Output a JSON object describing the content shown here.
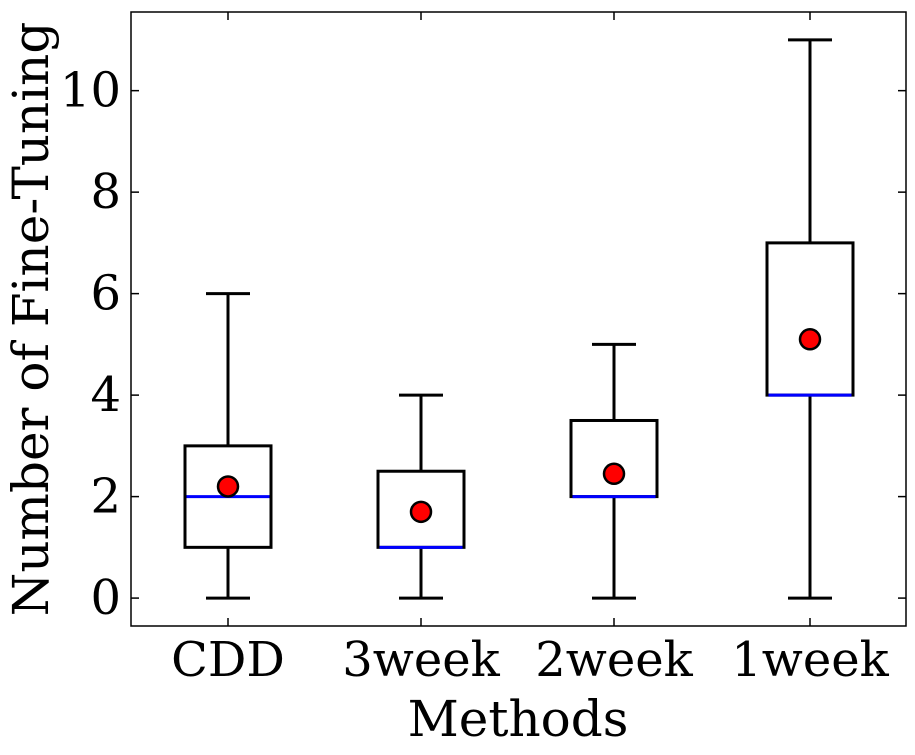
{
  "chart_data": {
    "type": "box",
    "title": "",
    "xlabel": "Methods",
    "ylabel": "Number of Fine-Tuning",
    "ylim": [
      -0.55,
      11.55
    ],
    "yticks": [
      0,
      2,
      4,
      6,
      8,
      10
    ],
    "categories": [
      "CDD",
      "3week",
      "2week",
      "1week"
    ],
    "boxes": [
      {
        "name": "CDD",
        "whisker_low": 0,
        "q1": 1,
        "median": 2,
        "q3": 3,
        "whisker_high": 6,
        "mean": 2.2
      },
      {
        "name": "3week",
        "whisker_low": 0,
        "q1": 1,
        "median": 1,
        "q3": 2.5,
        "whisker_high": 4,
        "mean": 1.7
      },
      {
        "name": "2week",
        "whisker_low": 0,
        "q1": 2,
        "median": 2,
        "q3": 3.5,
        "whisker_high": 5,
        "mean": 2.45
      },
      {
        "name": "1week",
        "whisker_low": 0,
        "q1": 4,
        "median": 4,
        "q3": 7,
        "whisker_high": 11,
        "mean": 5.1
      }
    ],
    "colors": {
      "box": "#000000",
      "median": "#0000ff",
      "mean": "#ff0000",
      "mean_edge": "#000000"
    }
  }
}
